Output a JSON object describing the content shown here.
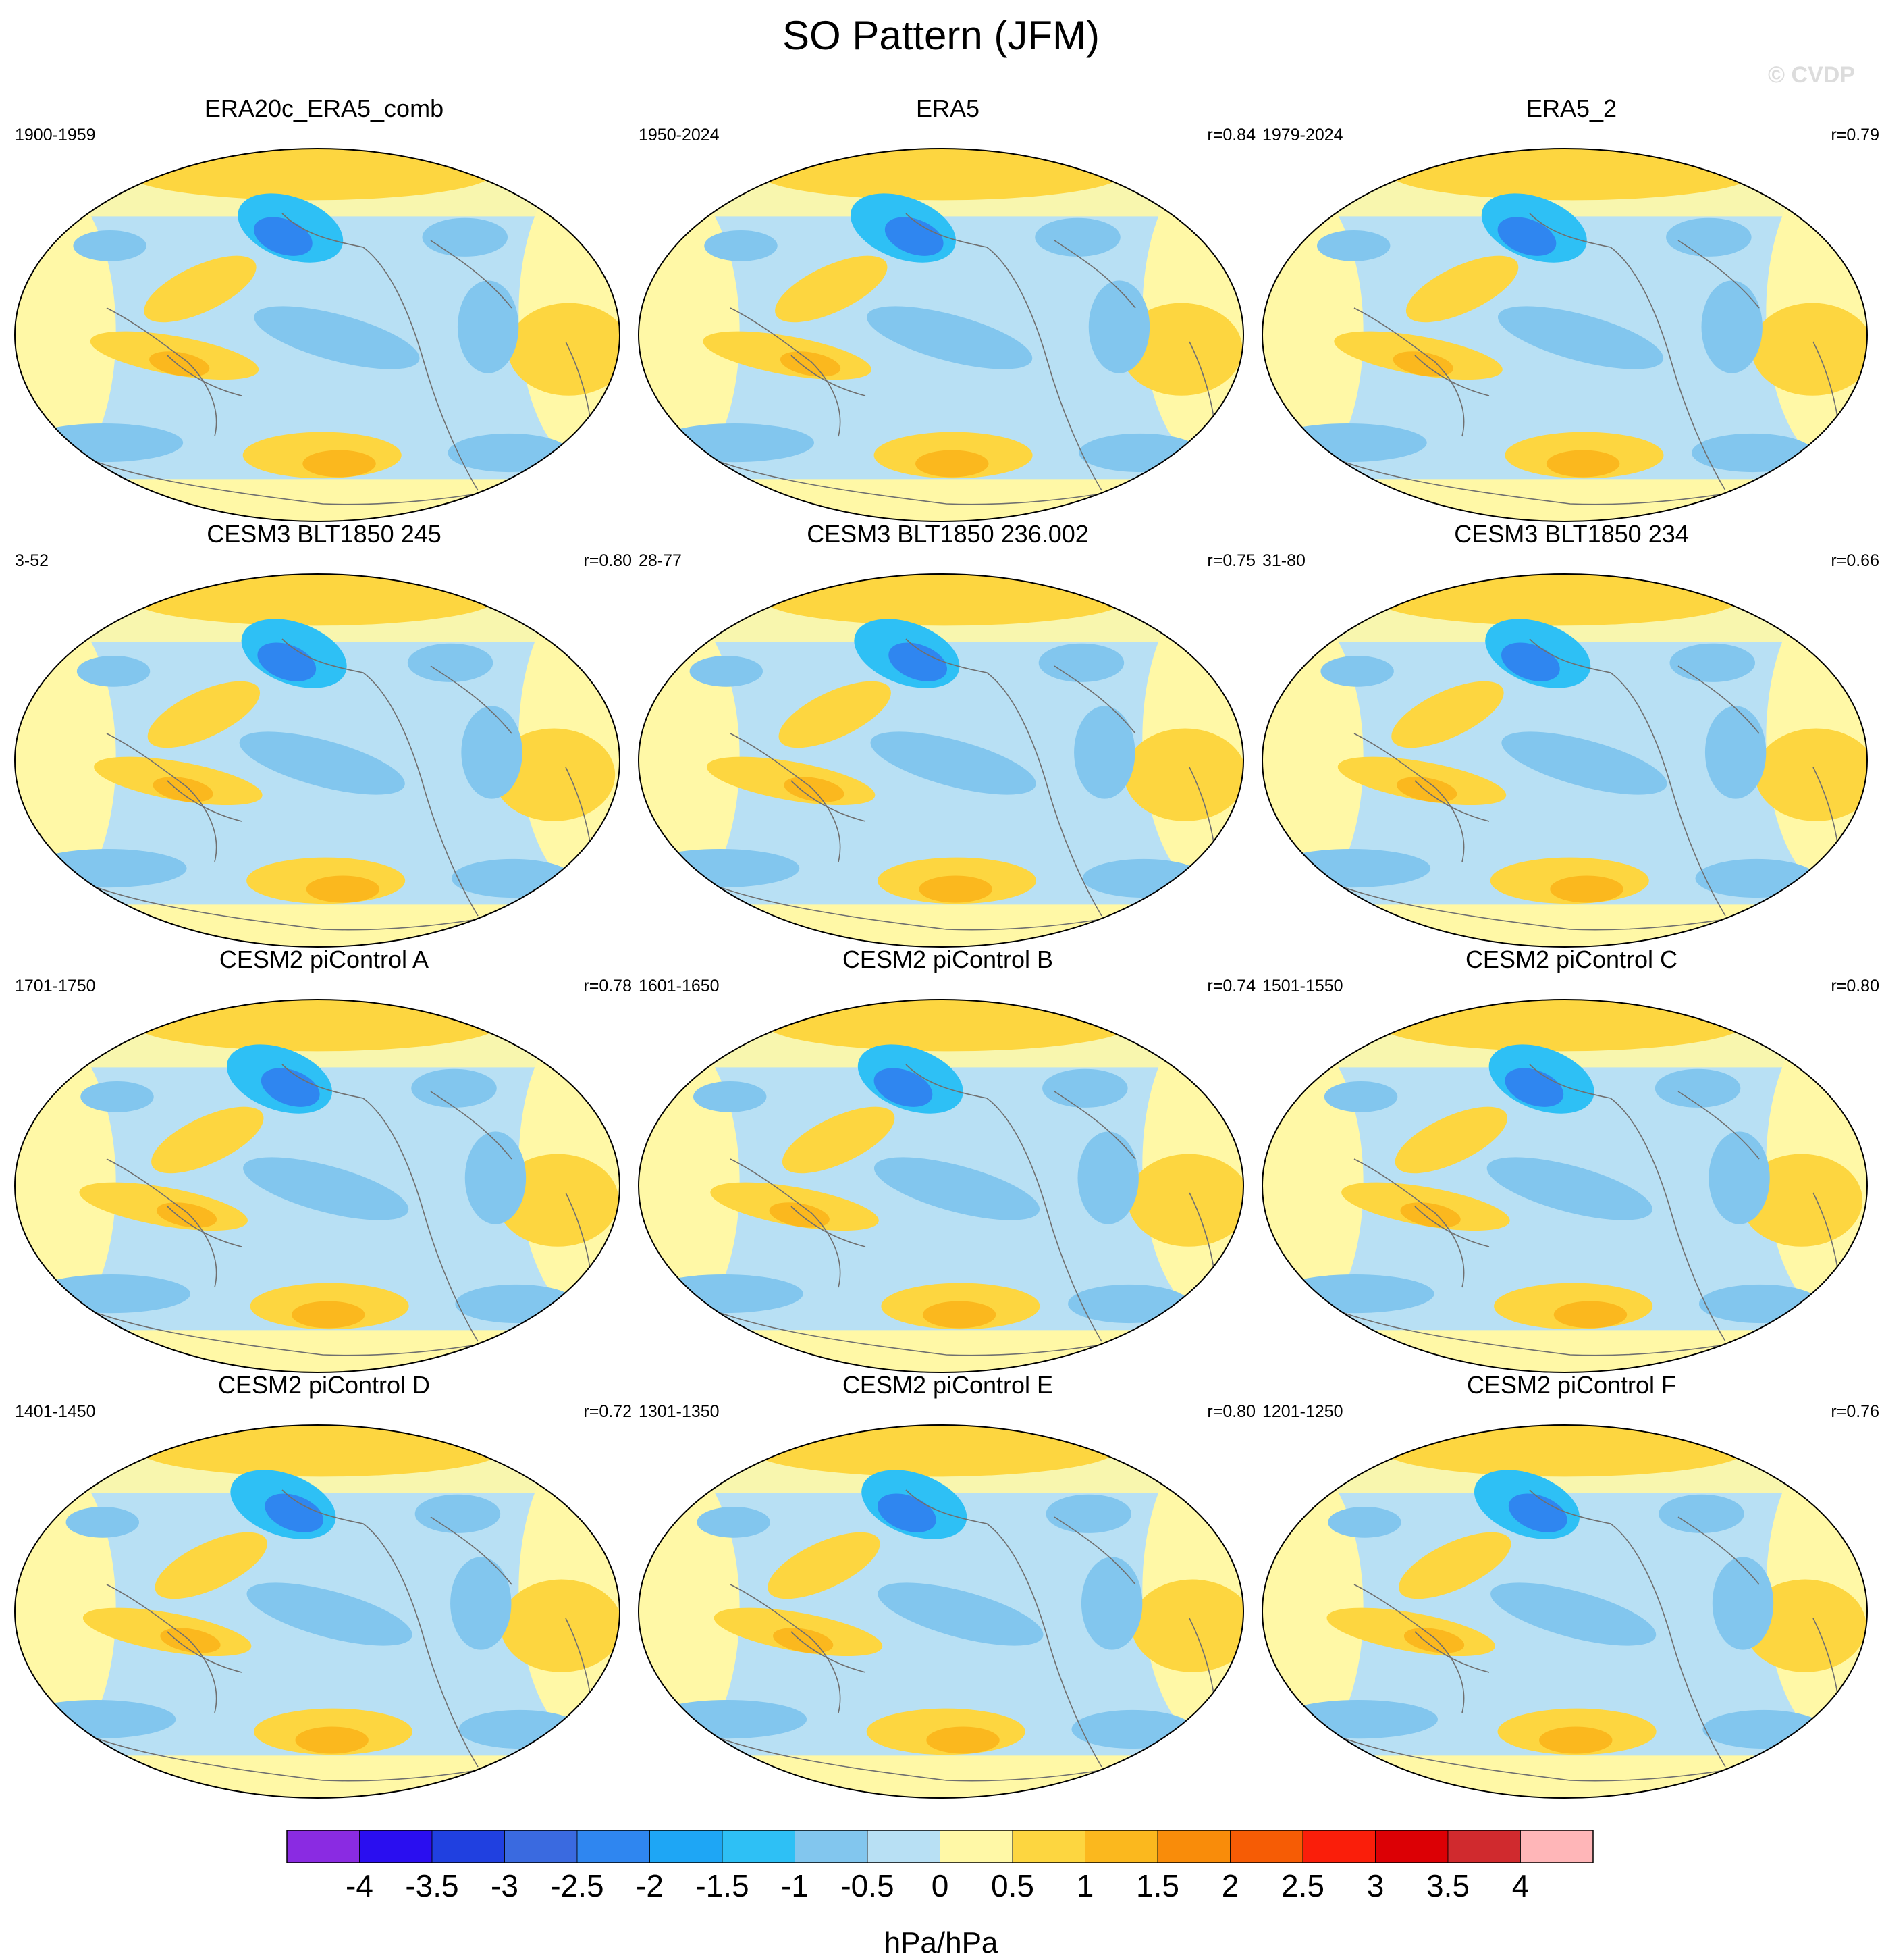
{
  "title": "SO Pattern (JFM)",
  "watermark": "© CVDP",
  "panels": [
    {
      "title": "ERA20c_ERA5_comb",
      "years": "1900-1959",
      "corr": ""
    },
    {
      "title": "ERA5",
      "years": "1950-2024",
      "corr": "r=0.84"
    },
    {
      "title": "ERA5_2",
      "years": "1979-2024",
      "corr": "r=0.79"
    },
    {
      "title": "CESM3 BLT1850 245",
      "years": "3-52",
      "corr": "r=0.80"
    },
    {
      "title": "CESM3 BLT1850 236.002",
      "years": "28-77",
      "corr": "r=0.75"
    },
    {
      "title": "CESM3 BLT1850 234",
      "years": "31-80",
      "corr": "r=0.66"
    },
    {
      "title": "CESM2 piControl A",
      "years": "1701-1750",
      "corr": "r=0.78"
    },
    {
      "title": "CESM2 piControl B",
      "years": "1601-1650",
      "corr": "r=0.74"
    },
    {
      "title": "CESM2 piControl C",
      "years": "1501-1550",
      "corr": "r=0.80"
    },
    {
      "title": "CESM2 piControl D",
      "years": "1401-1450",
      "corr": "r=0.72"
    },
    {
      "title": "CESM2 piControl E",
      "years": "1301-1350",
      "corr": "r=0.80"
    },
    {
      "title": "CESM2 piControl F",
      "years": "1201-1250",
      "corr": "r=0.76"
    }
  ],
  "colorbar": {
    "label": "hPa/hPa",
    "ticks": [
      "-4",
      "-3.5",
      "-3",
      "-2.5",
      "-2",
      "-1.5",
      "-1",
      "-0.5",
      "0",
      "0.5",
      "1",
      "1.5",
      "2",
      "2.5",
      "3",
      "3.5",
      "4"
    ],
    "colors": [
      "#8a2be2",
      "#2a0ef0",
      "#2040e0",
      "#3a6ae0",
      "#2f86f0",
      "#1ea6f5",
      "#2ec0f5",
      "#82c6ee",
      "#b8e0f4",
      "#fff8a6",
      "#fdd640",
      "#fbb81e",
      "#f98c0a",
      "#f65c05",
      "#fa1e0a",
      "#dc0005",
      "#d02a2e",
      "#ffb6b8"
    ]
  },
  "map_colors": {
    "ocean_neutral": "#b8e0f4",
    "land_neutral": "#fff8a6",
    "neg_1": "#82c6ee",
    "neg_2": "#2ec0f5",
    "neg_3": "#1ea6f5",
    "neg_4": "#2f86f0",
    "neg_5": "#2040e0",
    "pos_1": "#fdd640",
    "pos_2": "#fbb81e",
    "pos_3": "#f98c0a"
  }
}
